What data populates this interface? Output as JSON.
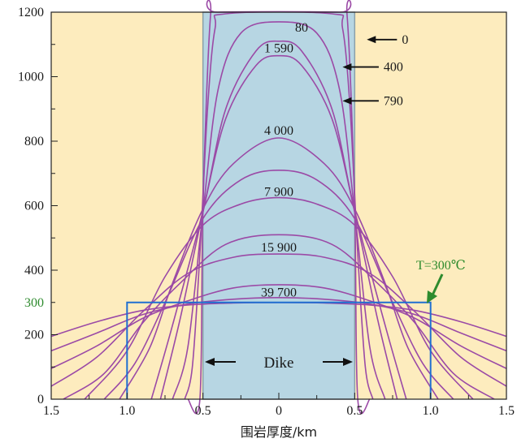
{
  "chart_data": {
    "type": "line",
    "xlabel": "围岩厚度/km",
    "ylabel": "",
    "xlim": [
      -1.5,
      1.5
    ],
    "ylim": [
      0,
      1200
    ],
    "y_ticks": [
      {
        "value": 0,
        "label": "0"
      },
      {
        "value": 200,
        "label": "200"
      },
      {
        "value": 300,
        "label": "300",
        "color": "#2e8b2e"
      },
      {
        "value": 400,
        "label": "400"
      },
      {
        "value": 600,
        "label": "600"
      },
      {
        "value": 800,
        "label": "800"
      },
      {
        "value": 1000,
        "label": "1000"
      },
      {
        "value": 1200,
        "label": "1200"
      }
    ],
    "x_ticks": [
      {
        "value": -1.5,
        "label": "1.5"
      },
      {
        "value": -1.0,
        "label": "1.0"
      },
      {
        "value": -0.5,
        "label": "0.5"
      },
      {
        "value": 0,
        "label": "0"
      },
      {
        "value": 0.5,
        "label": "0.5"
      },
      {
        "value": 1.0,
        "label": "1.0"
      },
      {
        "value": 1.5,
        "label": "1.5"
      }
    ],
    "dike": {
      "x_range": [
        -0.5,
        0.5
      ],
      "label": "Dike",
      "color": "#b7d6e3"
    },
    "background_color": "#fdecbe",
    "curve_color": "#9b4aa6",
    "series": [
      {
        "name": "0",
        "points": [
          [
            -0.6,
            0
          ],
          [
            -0.52,
            0
          ],
          [
            -0.5,
            600
          ],
          [
            -0.45,
            1190
          ],
          [
            -0.4,
            1200
          ],
          [
            0.4,
            1200
          ],
          [
            0.45,
            1190
          ],
          [
            0.5,
            600
          ],
          [
            0.52,
            0
          ],
          [
            0.6,
            0
          ]
        ]
      },
      {
        "name": "80",
        "points": [
          [
            -0.62,
            0
          ],
          [
            -0.57,
            100
          ],
          [
            -0.52,
            450
          ],
          [
            -0.47,
            900
          ],
          [
            -0.42,
            1150
          ],
          [
            -0.35,
            1195
          ],
          [
            0.35,
            1195
          ],
          [
            0.42,
            1150
          ],
          [
            0.47,
            900
          ],
          [
            0.52,
            450
          ],
          [
            0.57,
            100
          ],
          [
            0.62,
            0
          ]
        ]
      },
      {
        "name": "400",
        "points": [
          [
            -0.7,
            0
          ],
          [
            -0.6,
            160
          ],
          [
            -0.5,
            580
          ],
          [
            -0.4,
            960
          ],
          [
            -0.25,
            1135
          ],
          [
            0,
            1170
          ],
          [
            0.25,
            1135
          ],
          [
            0.4,
            960
          ],
          [
            0.5,
            580
          ],
          [
            0.6,
            160
          ],
          [
            0.7,
            0
          ]
        ]
      },
      {
        "name": "1 590",
        "points": [
          [
            -0.78,
            0
          ],
          [
            -0.65,
            250
          ],
          [
            -0.5,
            580
          ],
          [
            -0.35,
            870
          ],
          [
            -0.15,
            1035
          ],
          [
            0,
            1065
          ],
          [
            0.15,
            1035
          ],
          [
            0.35,
            870
          ],
          [
            0.5,
            580
          ],
          [
            0.65,
            250
          ],
          [
            0.78,
            0
          ]
        ]
      },
      {
        "name": "790",
        "points": [
          [
            -0.84,
            0
          ],
          [
            -0.7,
            230
          ],
          [
            -0.5,
            585
          ],
          [
            -0.35,
            900
          ],
          [
            -0.15,
            1080
          ],
          [
            0,
            1110
          ],
          [
            0.15,
            1080
          ],
          [
            0.35,
            900
          ],
          [
            0.5,
            585
          ],
          [
            0.7,
            230
          ],
          [
            0.84,
            0
          ]
        ]
      },
      {
        "name": "4 000",
        "points": [
          [
            -1.05,
            0
          ],
          [
            -0.85,
            160
          ],
          [
            -0.7,
            360
          ],
          [
            -0.5,
            590
          ],
          [
            -0.3,
            730
          ],
          [
            0,
            810
          ],
          [
            0.3,
            730
          ],
          [
            0.5,
            590
          ],
          [
            0.7,
            360
          ],
          [
            0.85,
            160
          ],
          [
            1.05,
            0
          ]
        ]
      },
      {
        "name": "7 900",
        "points": [
          [
            -1.28,
            0
          ],
          [
            -1.0,
            150
          ],
          [
            -0.75,
            380
          ],
          [
            -0.5,
            540
          ],
          [
            -0.25,
            605
          ],
          [
            0,
            625
          ],
          [
            0.25,
            605
          ],
          [
            0.5,
            540
          ],
          [
            0.75,
            380
          ],
          [
            1.0,
            150
          ],
          [
            1.28,
            0
          ]
        ]
      },
      {
        "name": "15 900",
        "points": [
          [
            -1.5,
            40
          ],
          [
            -1.2,
            130
          ],
          [
            -0.9,
            270
          ],
          [
            -0.6,
            390
          ],
          [
            -0.3,
            440
          ],
          [
            0,
            450
          ],
          [
            0.3,
            440
          ],
          [
            0.6,
            390
          ],
          [
            0.9,
            270
          ],
          [
            1.2,
            130
          ],
          [
            1.5,
            40
          ]
        ]
      },
      {
        "name": "39 700",
        "points": [
          [
            -1.5,
            195
          ],
          [
            -1.2,
            240
          ],
          [
            -0.9,
            275
          ],
          [
            -0.6,
            292
          ],
          [
            -0.3,
            298
          ],
          [
            0,
            300
          ],
          [
            0.3,
            298
          ],
          [
            0.6,
            292
          ],
          [
            0.9,
            275
          ],
          [
            1.2,
            240
          ],
          [
            1.5,
            195
          ]
        ]
      },
      {
        "name": "",
        "points": [
          [
            -1.5,
            150
          ],
          [
            -1.2,
            205
          ],
          [
            -0.9,
            262
          ],
          [
            -0.6,
            295
          ],
          [
            -0.3,
            310
          ],
          [
            0,
            315
          ],
          [
            0.3,
            310
          ],
          [
            0.6,
            295
          ],
          [
            0.9,
            262
          ],
          [
            1.2,
            205
          ],
          [
            1.5,
            150
          ]
        ]
      },
      {
        "name": "",
        "points": [
          [
            -1.5,
            95
          ],
          [
            -1.2,
            165
          ],
          [
            -0.9,
            250
          ],
          [
            -0.6,
            305
          ],
          [
            -0.3,
            345
          ],
          [
            0,
            355
          ],
          [
            0.3,
            345
          ],
          [
            0.6,
            305
          ],
          [
            0.9,
            250
          ],
          [
            1.2,
            165
          ],
          [
            1.5,
            95
          ]
        ]
      },
      {
        "name": "",
        "points": [
          [
            -1.42,
            0
          ],
          [
            -1.15,
            80
          ],
          [
            -0.9,
            235
          ],
          [
            -0.65,
            360
          ],
          [
            -0.35,
            480
          ],
          [
            0,
            510
          ],
          [
            0.35,
            480
          ],
          [
            0.65,
            360
          ],
          [
            0.9,
            235
          ],
          [
            1.15,
            80
          ],
          [
            1.42,
            0
          ]
        ]
      },
      {
        "name": "",
        "points": [
          [
            -1.15,
            0
          ],
          [
            -0.95,
            110
          ],
          [
            -0.75,
            300
          ],
          [
            -0.5,
            560
          ],
          [
            -0.25,
            680
          ],
          [
            0,
            710
          ],
          [
            0.25,
            680
          ],
          [
            0.5,
            560
          ],
          [
            0.75,
            300
          ],
          [
            0.95,
            110
          ],
          [
            1.15,
            0
          ]
        ]
      }
    ],
    "curve_labels": [
      {
        "text": "80",
        "x": 0.15,
        "y": 1140
      },
      {
        "text": "1 590",
        "x": 0.0,
        "y": 1075
      },
      {
        "text": "4 000",
        "x": 0.0,
        "y": 820
      },
      {
        "text": "7 900",
        "x": 0.0,
        "y": 630
      },
      {
        "text": "15 900",
        "x": 0.0,
        "y": 458
      },
      {
        "text": "39 700",
        "x": 0.0,
        "y": 318
      }
    ],
    "arrow_labels": [
      {
        "text": "0",
        "from_x": 0.8,
        "to_x": 0.58,
        "y": 1115
      },
      {
        "text": "400",
        "from_x": 0.68,
        "to_x": 0.42,
        "y": 1030
      },
      {
        "text": "790",
        "from_x": 0.68,
        "to_x": 0.42,
        "y": 925
      }
    ],
    "threshold": {
      "label": "T=300℃",
      "value": 300,
      "x_range": [
        -1.0,
        1.0
      ],
      "color": "#1f6fd1",
      "label_color": "#2e8b2e"
    }
  }
}
